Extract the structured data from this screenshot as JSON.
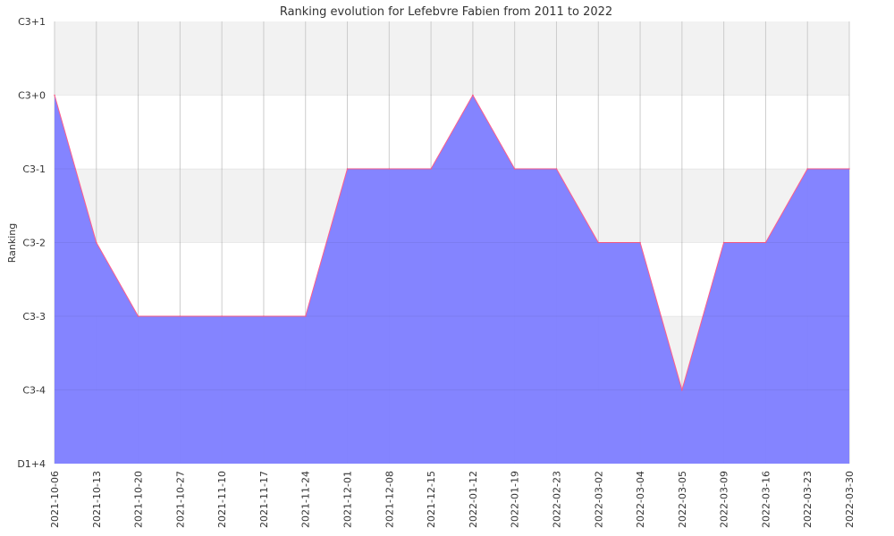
{
  "chart_data": {
    "type": "area",
    "title": "Ranking evolution for Lefebvre Fabien from 2011 to 2022",
    "xlabel": "",
    "ylabel": "Ranking",
    "y_tick_labels": [
      "D1+4",
      "C3-4",
      "C3-3",
      "C3-2",
      "C3-1",
      "C3+0",
      "C3+1"
    ],
    "ylim": [
      0,
      6
    ],
    "categories": [
      "2021-10-06",
      "2021-10-13",
      "2021-10-20",
      "2021-10-27",
      "2021-11-10",
      "2021-11-17",
      "2021-11-24",
      "2021-12-01",
      "2021-12-08",
      "2021-12-15",
      "2022-01-12",
      "2022-01-19",
      "2022-02-23",
      "2022-03-02",
      "2022-03-04",
      "2022-03-05",
      "2022-03-09",
      "2022-03-16",
      "2022-03-23",
      "2022-03-30"
    ],
    "series": [
      {
        "values": [
          "C3+0",
          "C3-2",
          "C3-3",
          "C3-3",
          "C3-3",
          "C3-3",
          "C3-3",
          "C3-1",
          "C3-1",
          "C3-1",
          "C3+0",
          "C3-1",
          "C3-1",
          "C3-2",
          "C3-2",
          "C3-4",
          "C3-2",
          "C3-2",
          "C3-1",
          "C3-1"
        ],
        "fill_color": "#8080ff",
        "line_color": "#ff5c8a"
      }
    ],
    "band_colors": [
      "#f2f2f2",
      "#ffffff"
    ],
    "grid": true
  }
}
